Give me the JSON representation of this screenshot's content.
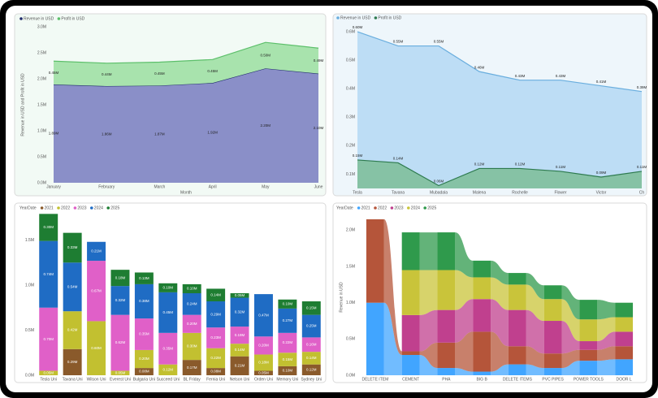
{
  "chart_data": [
    {
      "type": "area",
      "stacked": true,
      "y_label": "Revenue in USD and Profit in USD",
      "x_label": "Month",
      "categories": [
        "January",
        "February",
        "March",
        "April",
        "May",
        "June"
      ],
      "series": [
        {
          "name": "Revenue in USD",
          "color": "#8a8fc8",
          "line_color": "#1f2a6b",
          "values": [
            1.89,
            1.86,
            1.87,
            1.92,
            2.2,
            2.1
          ],
          "value_labels": [
            "1.89M",
            "1.86M",
            "1.87M",
            "1.92M",
            "2.20M",
            "2.10M"
          ]
        },
        {
          "name": "Profit in USD",
          "color": "#a8e3ad",
          "line_color": "#5cbf6a",
          "values": [
            0.45,
            0.44,
            0.45,
            0.45,
            0.5,
            0.49
          ],
          "value_labels": [
            "0.45M",
            "0.44M",
            "0.45M",
            "0.45M",
            "0.50M",
            "0.49M"
          ]
        }
      ],
      "ylim": [
        0,
        3.0
      ],
      "yticks": [
        {
          "value": 0,
          "label": "0.0M"
        },
        {
          "value": 0.5,
          "label": "0.5M"
        },
        {
          "value": 1,
          "label": "1.0M"
        },
        {
          "value": 1.5,
          "label": "1.5M"
        },
        {
          "value": 2,
          "label": "2.0M"
        },
        {
          "value": 2.5,
          "label": "2.5M"
        },
        {
          "value": 3,
          "label": "3.0M"
        }
      ],
      "grid": false
    },
    {
      "type": "area",
      "stacked": false,
      "categories": [
        "Tesla",
        "Tavana",
        "Mubadala",
        "Malena",
        "Rochelle",
        "Flower",
        "Victor",
        "Ch"
      ],
      "series": [
        {
          "name": "Revenue in USD",
          "color": "#b7daf4",
          "line_color": "#6aaede",
          "values": [
            0.6,
            0.55,
            0.55,
            0.46,
            0.43,
            0.43,
            0.41,
            0.39
          ],
          "value_labels": [
            "0.60M",
            "0.55M",
            "0.55M",
            "0.46M",
            "0.43M",
            "0.43M",
            "0.41M",
            "0.39M"
          ]
        },
        {
          "name": "Profit in USD",
          "color": "#7fbf9c",
          "line_color": "#2d7a4e",
          "values": [
            0.15,
            0.14,
            0.06,
            0.12,
            0.12,
            0.11,
            0.09,
            0.11
          ],
          "value_labels": [
            "0.15M",
            "0.14M",
            "0.06M",
            "0.12M",
            "0.12M",
            "0.11M",
            "0.09M",
            "0.11M"
          ]
        }
      ],
      "ylim": [
        0.05,
        0.62
      ],
      "yticks": [
        {
          "value": 0.1,
          "label": "0.1M"
        },
        {
          "value": 0.2,
          "label": "0.2M"
        },
        {
          "value": 0.3,
          "label": "0.3M"
        },
        {
          "value": 0.4,
          "label": "0.4M"
        },
        {
          "value": 0.5,
          "label": "0.5M"
        },
        {
          "value": 0.6,
          "label": "0.6M"
        }
      ],
      "grid": false
    },
    {
      "type": "stacked_bar",
      "legend_title": "YearDate",
      "categories": [
        "Tesla Uni",
        "Tavana Uni",
        "Wilson Uni",
        "Everest Uni",
        "Bulgaria Uni",
        "Succeed Uni",
        "BL Friday",
        "Fernia Uni",
        "Nelson Uni",
        "Orden Uni",
        "Memory Uni",
        "Sydney Uni"
      ],
      "series": [
        {
          "name": "2021",
          "color": "#8a5a2b",
          "values": [
            null,
            0.29,
            null,
            null,
            0.08,
            null,
            0.17,
            0.08,
            0.21,
            0.05,
            0.1,
            0.12
          ],
          "value_labels": [
            null,
            "0.29M",
            null,
            null,
            "0.08M",
            null,
            "0.17M",
            "0.08M",
            "0.21M",
            "0.05M",
            "0.10M",
            "0.12M"
          ]
        },
        {
          "name": "2022",
          "color": "#c2c030",
          "values": [
            0.05,
            0.42,
            0.6,
            0.05,
            0.2,
            0.12,
            0.3,
            0.22,
            0.14,
            0.18,
            0.15,
            0.14
          ],
          "value_labels": [
            "0.05M",
            "0.42M",
            "0.60M",
            "0.05M",
            "0.20M",
            "0.12M",
            "0.30M",
            "0.22M",
            "0.14M",
            "0.18M",
            "0.15M",
            "0.14M"
          ]
        },
        {
          "name": "2023",
          "color": "#e060c8",
          "values": [
            0.7,
            null,
            0.67,
            0.62,
            0.35,
            0.35,
            0.2,
            0.23,
            0.19,
            0.2,
            0.22,
            0.16
          ],
          "value_labels": [
            "0.70M",
            null,
            "0.67M",
            "0.62M",
            "0.35M",
            "0.35M",
            "0.20M",
            "0.23M",
            "0.19M",
            "0.20M",
            "0.22M",
            "0.16M"
          ]
        },
        {
          "name": "2024",
          "color": "#1f6cc4",
          "values": [
            0.74,
            0.54,
            0.21,
            0.32,
            0.38,
            0.45,
            0.24,
            0.29,
            0.32,
            0.47,
            0.27,
            0.25
          ],
          "value_labels": [
            "0.74M",
            "0.54M",
            "0.21M",
            "0.32M",
            "0.38M",
            "0.45M",
            "0.24M",
            "0.29M",
            "0.32M",
            "0.47M",
            "0.27M",
            "0.25M"
          ]
        },
        {
          "name": "2025",
          "color": "#1e7d32",
          "values": [
            0.3,
            0.33,
            null,
            0.18,
            0.13,
            0.1,
            0.1,
            0.14,
            0.05,
            null,
            0.1,
            0.15
          ],
          "value_labels": [
            "0.30M",
            "0.33M",
            null,
            "0.18M",
            "0.13M",
            "0.10M",
            "0.10M",
            "0.14M",
            "0.05M",
            null,
            "0.10M",
            "0.15M"
          ]
        }
      ],
      "ylim": [
        0,
        1.73
      ],
      "yticks": [
        {
          "value": 0,
          "label": "0.0M"
        },
        {
          "value": 0.5,
          "label": "0.5M"
        },
        {
          "value": 1,
          "label": "1.0M"
        },
        {
          "value": 1.5,
          "label": "1.5M"
        }
      ],
      "grid": false
    },
    {
      "type": "ribbon",
      "legend_title": "YearDate",
      "y_label": "Revenue in USD",
      "categories": [
        "DELETE ITEM",
        "CEMENT",
        "PHA",
        "BIG B",
        "DELETE ITEMS",
        "PVC PIPES",
        "POWER TOOLS",
        "DOOR L"
      ],
      "series": [
        {
          "name": "2021",
          "color": "#41a5ff",
          "values": [
            1.0,
            0.28,
            0.1,
            0.05,
            0.15,
            0.1,
            0.2,
            0.22
          ]
        },
        {
          "name": "2022",
          "color": "#b5553a",
          "values": [
            1.15,
            0.05,
            0.35,
            0.55,
            0.25,
            0.2,
            0.15,
            0.18
          ]
        },
        {
          "name": "2023",
          "color": "#c0408e",
          "values": [
            null,
            0.5,
            0.45,
            0.45,
            0.5,
            0.45,
            0.12,
            0.2
          ]
        },
        {
          "name": "2024",
          "color": "#c9c43a",
          "values": [
            null,
            0.62,
            0.55,
            0.3,
            0.35,
            0.3,
            0.3,
            0.2
          ]
        },
        {
          "name": "2025",
          "color": "#2f9a4c",
          "values": [
            null,
            0.52,
            0.52,
            0.23,
            0.16,
            0.19,
            0.27,
            0.2
          ]
        }
      ],
      "ylim": [
        0,
        2.15
      ],
      "yticks": [
        {
          "value": 0,
          "label": "0.0M"
        },
        {
          "value": 0.5,
          "label": "0.5M"
        },
        {
          "value": 1,
          "label": "1.0M"
        },
        {
          "value": 1.5,
          "label": "1.5M"
        },
        {
          "value": 2,
          "label": "2.0M"
        }
      ],
      "grid": false
    }
  ]
}
